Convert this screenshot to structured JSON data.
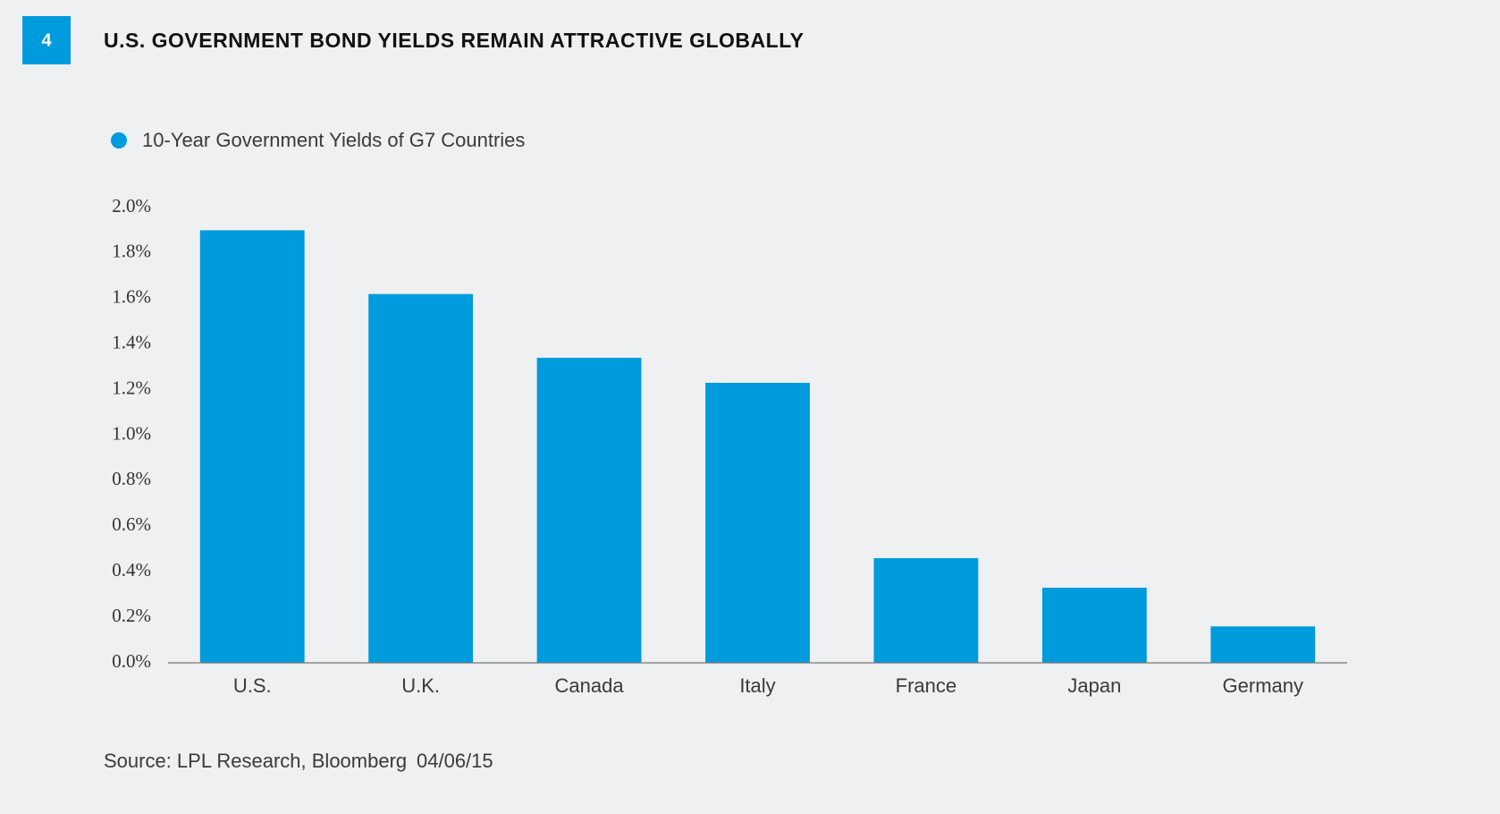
{
  "badge": "4",
  "chart_data": {
    "type": "bar",
    "title": "U.S. GOVERNMENT BOND YIELDS REMAIN ATTRACTIVE GLOBALLY",
    "categories": [
      "U.S.",
      "U.K.",
      "Canada",
      "Italy",
      "France",
      "Japan",
      "Germany"
    ],
    "series": [
      {
        "name": "10-Year Government Yields of G7 Countries",
        "color": "#009bdc",
        "values": [
          1.9,
          1.62,
          1.34,
          1.23,
          0.46,
          0.33,
          0.16
        ]
      }
    ],
    "ylim": [
      0,
      2
    ],
    "yticks": [
      {
        "value": 0,
        "label": "0.0%"
      },
      {
        "value": 0.2,
        "label": "0.2%"
      },
      {
        "value": 0.4,
        "label": "0.4%"
      },
      {
        "value": 0.6,
        "label": "0.6%"
      },
      {
        "value": 0.8,
        "label": "0.8%"
      },
      {
        "value": 1,
        "label": "1.0%"
      },
      {
        "value": 1.2,
        "label": "1.2%"
      },
      {
        "value": 1.4,
        "label": "1.4%"
      },
      {
        "value": 1.6,
        "label": "1.6%"
      },
      {
        "value": 1.8,
        "label": "1.8%"
      },
      {
        "value": 2,
        "label": "2.0%"
      }
    ],
    "grid": false,
    "source": "Source: LPL Research, Bloomberg",
    "date": "04/06/15"
  }
}
